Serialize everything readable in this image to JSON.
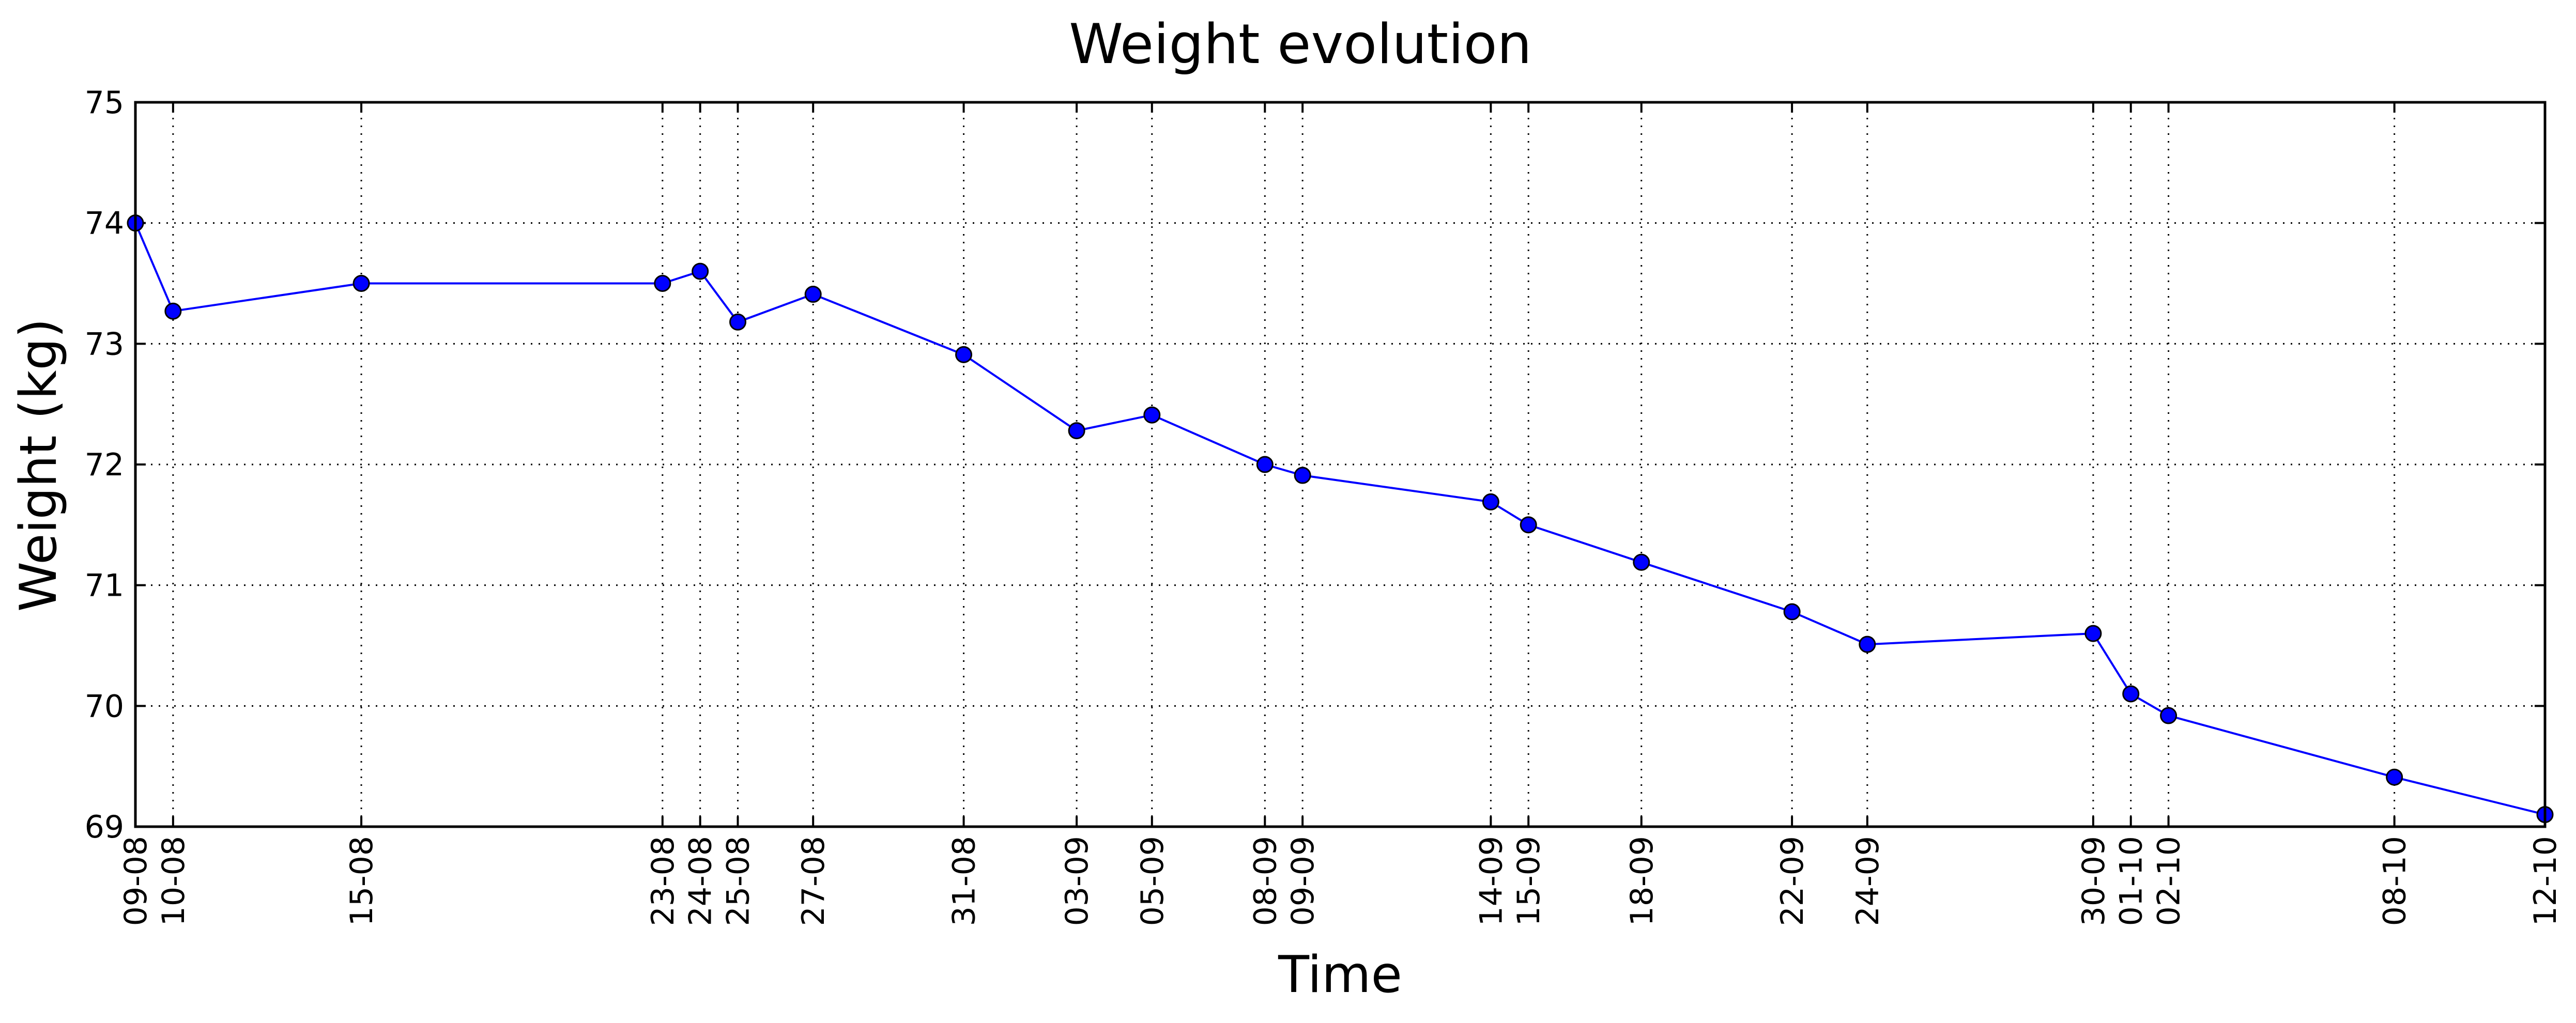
{
  "chart_data": {
    "type": "line",
    "title": "Weight evolution",
    "xlabel": "Time",
    "ylabel": "Weight (kg)",
    "ylim": [
      69,
      75
    ],
    "yticks": [
      "69",
      "70",
      "71",
      "72",
      "73",
      "74",
      "75"
    ],
    "grid": true,
    "x_range": [
      "09-08",
      "12-10"
    ],
    "x_axis_kind": "dates (dd-mm)",
    "series": [
      {
        "points": [
          {
            "x": "09-08",
            "y": 74.0
          },
          {
            "x": "10-08",
            "y": 73.27
          },
          {
            "x": "15-08",
            "y": 73.5
          },
          {
            "x": "23-08",
            "y": 73.5
          },
          {
            "x": "24-08",
            "y": 73.6
          },
          {
            "x": "25-08",
            "y": 73.18
          },
          {
            "x": "27-08",
            "y": 73.41
          },
          {
            "x": "31-08",
            "y": 72.91
          },
          {
            "x": "03-09",
            "y": 72.28
          },
          {
            "x": "05-09",
            "y": 72.41
          },
          {
            "x": "08-09",
            "y": 72.0
          },
          {
            "x": "09-09",
            "y": 71.91
          },
          {
            "x": "14-09",
            "y": 71.69
          },
          {
            "x": "15-09",
            "y": 71.5
          },
          {
            "x": "18-09",
            "y": 71.19
          },
          {
            "x": "22-09",
            "y": 70.78
          },
          {
            "x": "24-09",
            "y": 70.51
          },
          {
            "x": "30-09",
            "y": 70.6
          },
          {
            "x": "01-10",
            "y": 70.1
          },
          {
            "x": "02-10",
            "y": 69.92
          },
          {
            "x": "08-10",
            "y": 69.41
          },
          {
            "x": "12-10",
            "y": 69.1
          }
        ]
      }
    ],
    "colors": {
      "line": "#0000ff",
      "marker_fill": "#0000ff",
      "marker_edge": "#000000"
    }
  }
}
